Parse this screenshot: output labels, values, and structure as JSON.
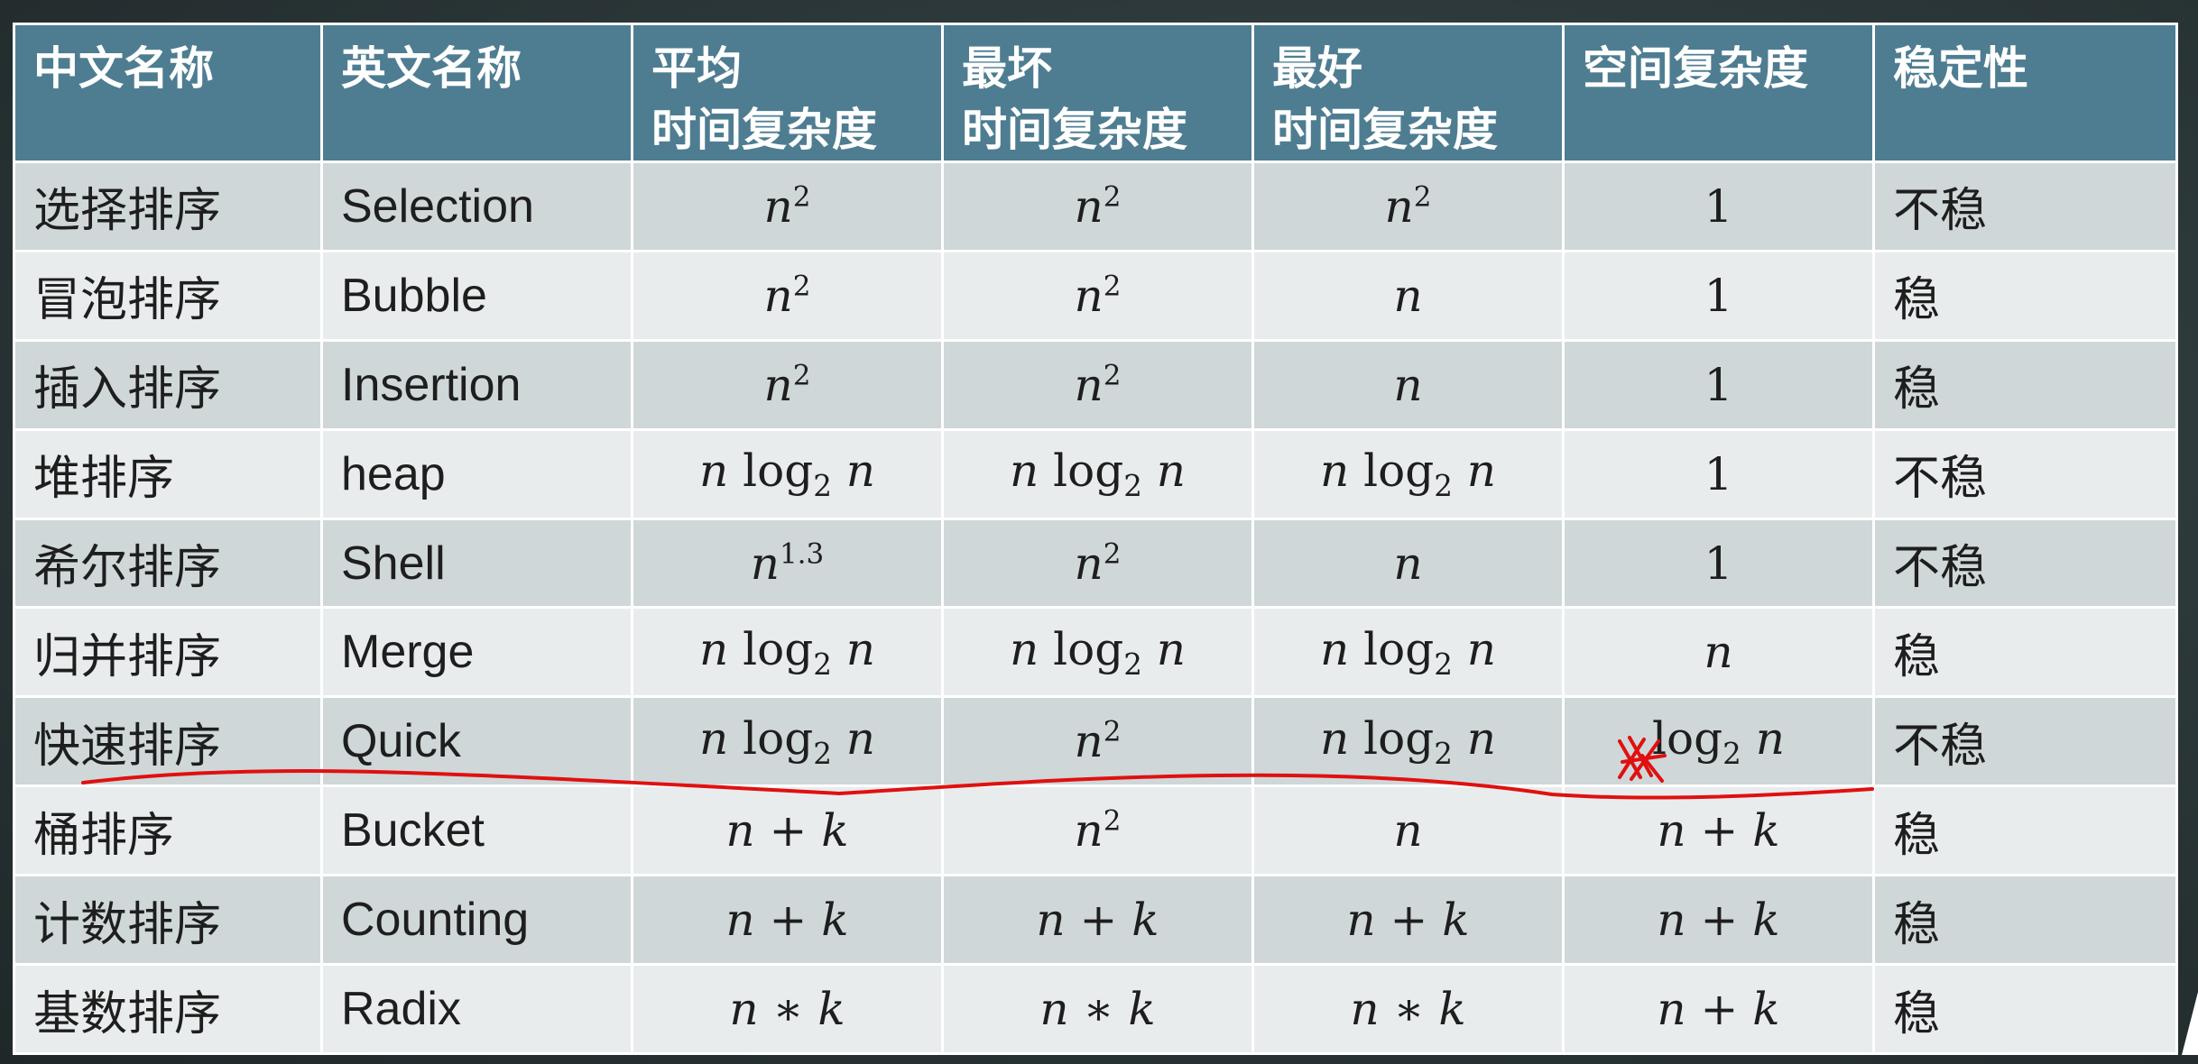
{
  "headers": [
    {
      "line1": "中文名称",
      "line2": ""
    },
    {
      "line1": "英文名称",
      "line2": ""
    },
    {
      "line1": "平均",
      "line2": "时间复杂度"
    },
    {
      "line1": "最坏",
      "line2": "时间复杂度"
    },
    {
      "line1": "最好",
      "line2": "时间复杂度"
    },
    {
      "line1": "空间复杂度",
      "line2": ""
    },
    {
      "line1": "稳定性",
      "line2": ""
    }
  ],
  "rows": [
    {
      "cn": "选择排序",
      "en": "Selection",
      "avg": "n^2",
      "worst": "n^2",
      "best": "n^2",
      "space": "1",
      "stability": "不稳"
    },
    {
      "cn": "冒泡排序",
      "en": "Bubble",
      "avg": "n^2",
      "worst": "n^2",
      "best": "n",
      "space": "1",
      "stability": "稳"
    },
    {
      "cn": "插入排序",
      "en": "Insertion",
      "avg": "n^2",
      "worst": "n^2",
      "best": "n",
      "space": "1",
      "stability": "稳"
    },
    {
      "cn": "堆排序",
      "en": "heap",
      "avg": "n log_2 n",
      "worst": "n log_2 n",
      "best": "n log_2 n",
      "space": "1",
      "stability": "不稳"
    },
    {
      "cn": "希尔排序",
      "en": "Shell",
      "avg": "n^1.3",
      "worst": "n^2",
      "best": "n",
      "space": "1",
      "stability": "不稳"
    },
    {
      "cn": "归并排序",
      "en": "Merge",
      "avg": "n log_2 n",
      "worst": "n log_2 n",
      "best": "n log_2 n",
      "space": "n",
      "stability": "稳"
    },
    {
      "cn": "快速排序",
      "en": "Quick",
      "avg": "n log_2 n",
      "worst": "n^2",
      "best": "n log_2 n",
      "space": "log_2 n",
      "stability": "不稳"
    },
    {
      "cn": "桶排序",
      "en": "Bucket",
      "avg": "n + k",
      "worst": "n^2",
      "best": "n",
      "space": "n + k",
      "stability": "稳"
    },
    {
      "cn": "计数排序",
      "en": "Counting",
      "avg": "n + k",
      "worst": "n + k",
      "best": "n + k",
      "space": "n + k",
      "stability": "稳"
    },
    {
      "cn": "基数排序",
      "en": "Radix",
      "avg": "n * k",
      "worst": "n * k",
      "best": "n * k",
      "space": "n + k",
      "stability": "稳"
    }
  ],
  "colors": {
    "header_bg": "#4e7d92",
    "row_odd": "#cfd7d9",
    "row_even": "#e9eced",
    "annotation": "#e01010"
  }
}
